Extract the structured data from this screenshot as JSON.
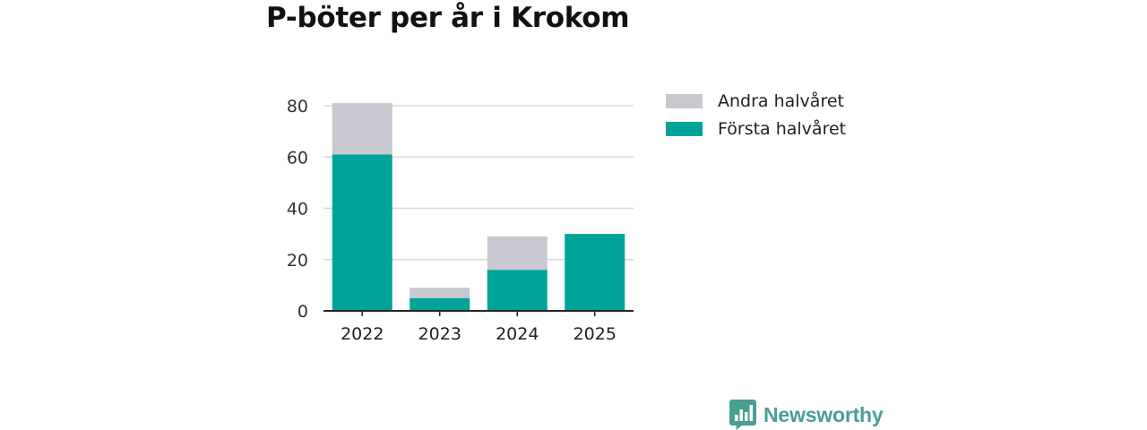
{
  "title": "P-böter per år i Krokom",
  "brand": {
    "name": "Newsworthy",
    "color": "#4a9e92"
  },
  "colors": {
    "forsta": "#00a39a",
    "andra": "#c8c8d0",
    "grid": "#d9d9d9",
    "axis": "#222222"
  },
  "chart_data": {
    "type": "bar",
    "stacked": true,
    "categories": [
      "2022",
      "2023",
      "2024",
      "2025"
    ],
    "series": [
      {
        "name": "Första halvåret",
        "color": "#00a39a",
        "values": [
          61,
          5,
          16,
          30
        ]
      },
      {
        "name": "Andra halvåret",
        "color": "#c8c8d0",
        "values": [
          20,
          4,
          13,
          0
        ]
      }
    ],
    "ylim": [
      0,
      80
    ],
    "yticks": [
      0,
      20,
      40,
      60,
      80
    ],
    "grid": true,
    "legend": "right",
    "xlabel": "",
    "ylabel": ""
  }
}
